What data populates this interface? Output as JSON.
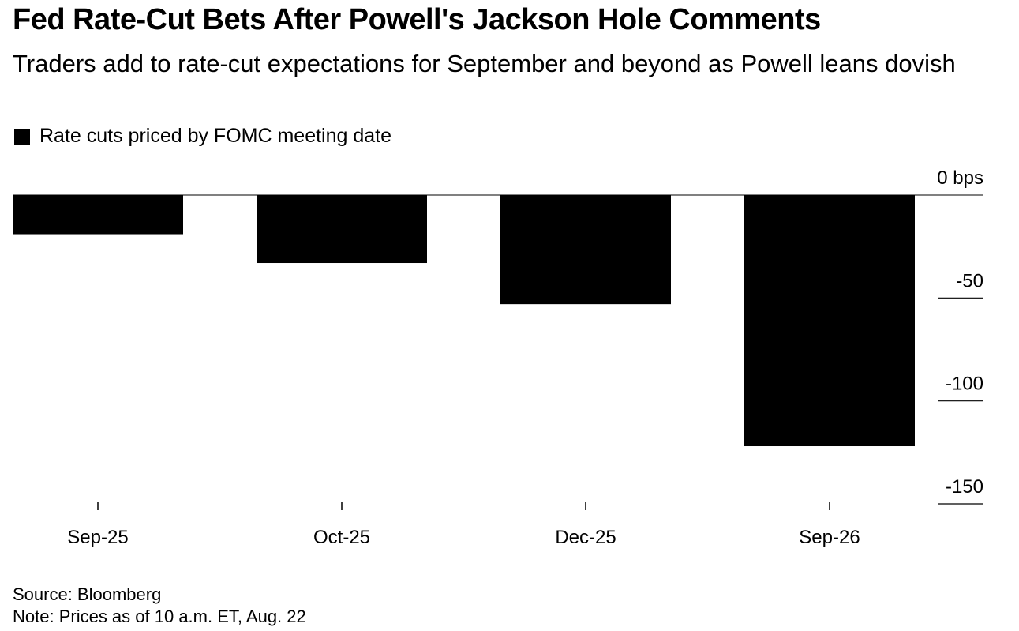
{
  "header": {
    "title": "Fed Rate-Cut Bets After Powell's Jackson Hole Comments",
    "subtitle": "Traders add to rate-cut expectations for September and beyond as Powell leans dovish"
  },
  "legend": {
    "label": "Rate cuts priced by FOMC meeting date",
    "color": "#000000"
  },
  "footer": {
    "source": "Source: Bloomberg",
    "note": "Note: Prices as of 10 a.m. ET, Aug. 22"
  },
  "chart_data": {
    "type": "bar",
    "categories": [
      "Sep-25",
      "Oct-25",
      "Dec-25",
      "Sep-26"
    ],
    "series": [
      {
        "name": "Rate cuts priced by FOMC meeting date",
        "values": [
          -19,
          -33,
          -53,
          -122
        ],
        "color": "#000000"
      }
    ],
    "ylim": [
      -150,
      0
    ],
    "yticks": [
      0,
      -50,
      -100,
      -150
    ],
    "ytick_labels": [
      "0 bps",
      "-50",
      "-100",
      "-150"
    ],
    "yaxis_position": "right",
    "xlabel": "",
    "ylabel": ""
  }
}
